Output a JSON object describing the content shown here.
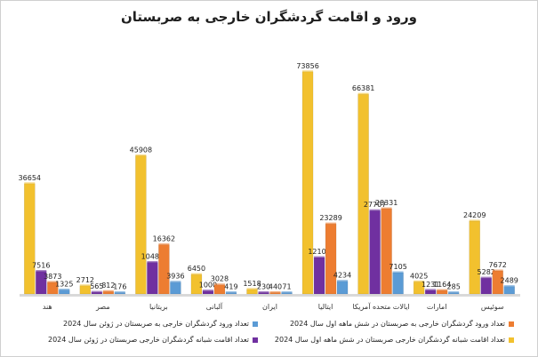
{
  "chart_data": {
    "type": "bar",
    "title": "ورود و اقامت گردشگران خارجی به صربستان",
    "categories": [
      "سوئیس",
      "امارات",
      "ایالات متحده آمریکا",
      "ایتالیا",
      "ایران",
      "آلبانی",
      "بریتانیا",
      "مصر",
      "هند"
    ],
    "series": [
      {
        "name": "تعداد اقامت شبانه گردشگران خارجی صربستان در شش ماهه اول سال 2024",
        "color": "#f2c12e",
        "values": [
          24209,
          4025,
          66381,
          73856,
          1518,
          6450,
          45908,
          2712,
          36654
        ]
      },
      {
        "name": "تعداد اقامت شبانه گردشگران خارجی صربستان در ژوئن سال 2024",
        "color": "#7030a0",
        "values": [
          5282,
          1231,
          27707,
          12108,
          230,
          1000,
          10480,
          565,
          7516
        ]
      },
      {
        "name": "تعداد ورود گردشگران خارجی به صربستان در شش ماهه اول سال 2024",
        "color": "#ed7d31",
        "values": [
          7672,
          1164,
          28331,
          23289,
          440,
          3028,
          16362,
          812,
          3873
        ]
      },
      {
        "name": "تعداد ورود گردشگران خارجی به صربستان در ژوئن سال 2024",
        "color": "#5b9bd5",
        "values": [
          2489,
          285,
          7105,
          4234,
          71,
          419,
          3936,
          176,
          1325
        ]
      }
    ],
    "data_labels": [
      [
        "24209",
        "5282",
        "7672",
        "2489"
      ],
      [
        "4025",
        "1231",
        "1164",
        "285"
      ],
      [
        "66381",
        "27707",
        "28331",
        "7105"
      ],
      [
        "73856",
        "12108",
        "23289",
        "4234"
      ],
      [
        "1518",
        "230",
        "440",
        "71"
      ],
      [
        "6450",
        "1000",
        "3028",
        "419"
      ],
      [
        "45908",
        "10480",
        "16362",
        "3936"
      ],
      [
        "2712",
        "565",
        "812",
        "176"
      ],
      [
        "36654",
        "7516",
        "3873",
        "1325"
      ]
    ],
    "ylim": [
      0,
      80000
    ],
    "legend_position": "bottom"
  },
  "legend": [
    "تعداد ورود گردشگران خارجی به صربستان در ژوئن سال 2024",
    "تعداد ورود گردشگران خارجی به صربستان در شش ماهه اول سال 2024",
    "تعداد اقامت شبانه گردشگران خارجی صربستان در ژوئن سال 2024",
    "تعداد اقامت شبانه گردشگران خارجی صربستان در شش ماهه اول سال 2024"
  ]
}
